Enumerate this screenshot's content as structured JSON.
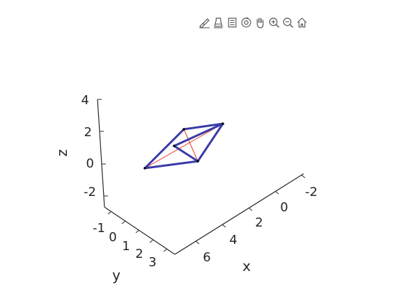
{
  "toolbar": {
    "items": [
      {
        "name": "brush-icon"
      },
      {
        "name": "data-tips-icon"
      },
      {
        "name": "insert-legend-icon"
      },
      {
        "name": "rotate-3d-icon"
      },
      {
        "name": "pan-hand-icon"
      },
      {
        "name": "zoom-in-icon"
      },
      {
        "name": "zoom-out-icon"
      },
      {
        "name": "home-icon"
      }
    ]
  },
  "chart_data": {
    "type": "line",
    "projection": "3d",
    "xlabel": "x",
    "ylabel": "y",
    "zlabel": "z",
    "x_ticks": [
      "-2",
      "0",
      "2",
      "4",
      "6"
    ],
    "y_ticks": [
      "-1",
      "0",
      "1",
      "2",
      "3"
    ],
    "z_ticks": [
      "-2",
      "0",
      "2",
      "4"
    ],
    "grid": false,
    "colors": {
      "edges": "#3a3aa8",
      "diagonals": "#e8382a",
      "vertices": "#000000",
      "axis": "#262626"
    }
  }
}
